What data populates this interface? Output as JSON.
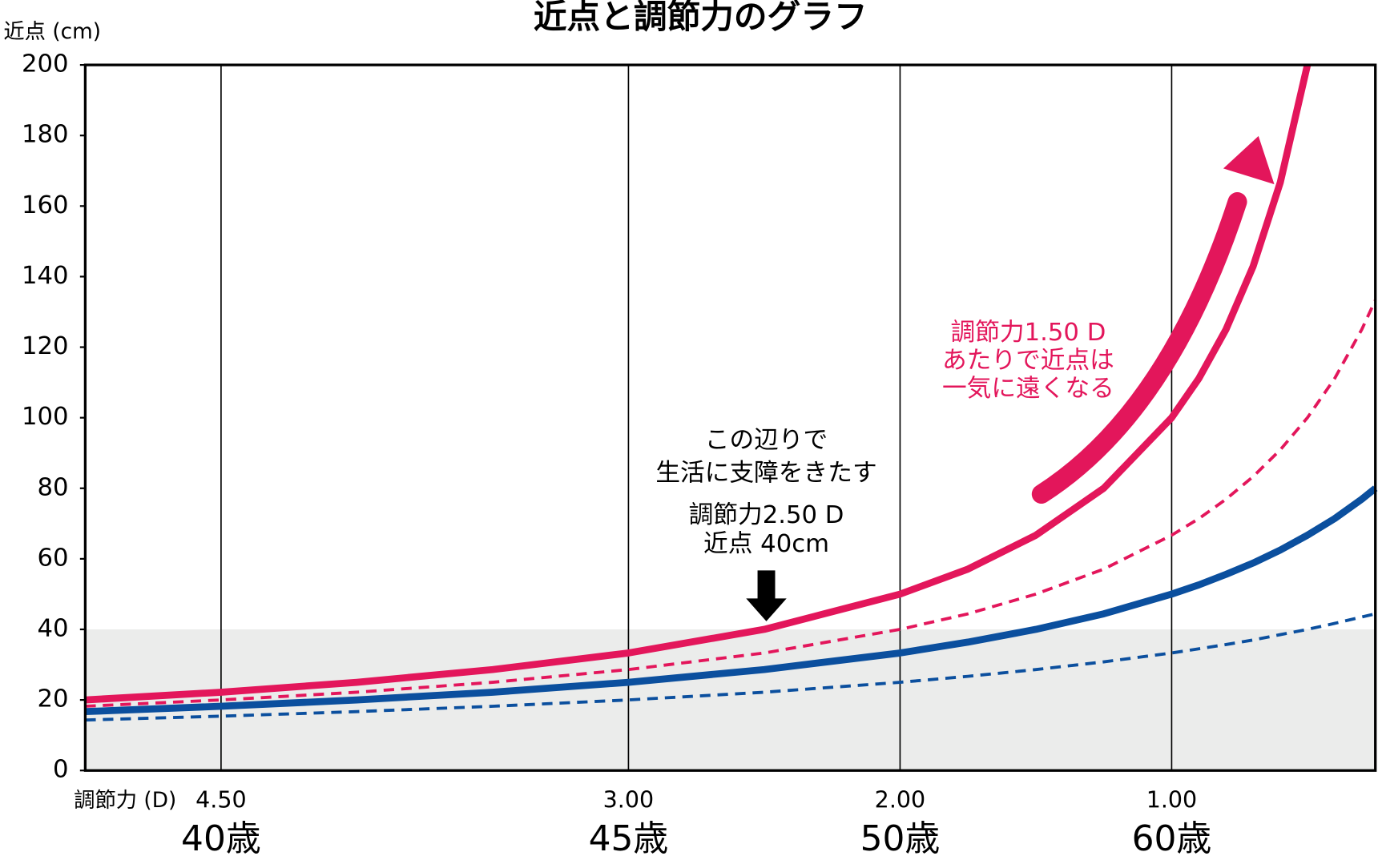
{
  "chart_data": {
    "type": "line",
    "title": "近点と調節力のグラフ",
    "y_label": "近点 (cm)",
    "x_label": "調節力 (D)",
    "xlim": [
      5,
      0.25
    ],
    "ylim": [
      0,
      200
    ],
    "yticks": [
      0,
      20,
      40,
      60,
      80,
      100,
      120,
      140,
      160,
      180,
      200
    ],
    "xticks": [
      {
        "value": 4.5,
        "label": "4.50"
      },
      {
        "value": 3,
        "label": "3.00"
      },
      {
        "value": 2,
        "label": "2.00"
      },
      {
        "value": 1,
        "label": "1.00"
      }
    ],
    "age_labels": [
      "40歳",
      "45歳",
      "50歳",
      "60歳"
    ],
    "x_grid": true,
    "shaded_band": {
      "from": 0,
      "to": 40,
      "color": "#ebeceb"
    },
    "x": [
      5,
      4.5,
      4,
      3.5,
      3,
      2.5,
      2,
      1.75,
      1.5,
      1.25,
      1,
      0.9,
      0.8,
      0.7,
      0.6,
      0.5,
      0.4,
      0.3,
      0.25
    ],
    "series": [
      {
        "color": "#0b4f9e",
        "dashed": true,
        "values": [
          14.3,
          15.4,
          16.7,
          18.2,
          20,
          22.2,
          25,
          26.7,
          28.6,
          30.8,
          33.3,
          34.5,
          35.7,
          37,
          38.5,
          40,
          41.7,
          43.5,
          44.4
        ]
      },
      {
        "color": "#e3165b",
        "dashed": true,
        "values": [
          18.2,
          20,
          22.2,
          25,
          28.6,
          33.3,
          40,
          44.4,
          50,
          57.1,
          66.7,
          71.4,
          76.9,
          83.3,
          90.9,
          100,
          111.1,
          125,
          133.3
        ]
      },
      {
        "color": "#0b4f9e",
        "dashed": false,
        "values": [
          16.7,
          18.2,
          20,
          22.2,
          25,
          28.6,
          33.3,
          36.4,
          40,
          44.4,
          50,
          52.6,
          55.6,
          58.8,
          62.5,
          66.7,
          71.4,
          76.9,
          80
        ]
      },
      {
        "color": "#e3165b",
        "dashed": false,
        "values": [
          20,
          22.2,
          25,
          28.6,
          33.3,
          40,
          50,
          57.1,
          66.7,
          80,
          100,
          111.1,
          125,
          142.9,
          166.7,
          200,
          null,
          null,
          null
        ]
      }
    ],
    "annotations": {
      "note_black": [
        "この辺りで",
        "生活に支障をきたす"
      ],
      "note_point": [
        "調節力2.50 D",
        "近点 40cm"
      ],
      "note_red": [
        "調節力1.50 D",
        "あたりで近点は",
        "一気に遠くなる"
      ]
    }
  }
}
